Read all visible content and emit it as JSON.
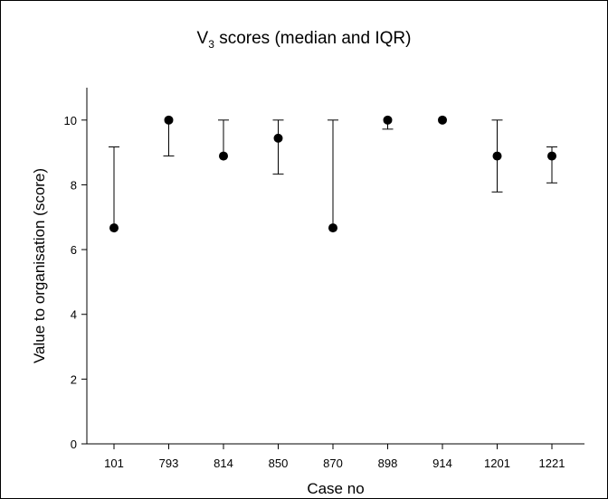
{
  "chart_data": {
    "type": "scatter",
    "title_main": "V",
    "title_sub": "3",
    "title_rest": " scores (median and IQR)",
    "xlabel": "Case no",
    "ylabel": "Value to organisation (score)",
    "ylim": [
      0,
      11
    ],
    "yticks": [
      0,
      2,
      4,
      6,
      8,
      10
    ],
    "categories": [
      "101",
      "793",
      "814",
      "850",
      "870",
      "898",
      "914",
      "1201",
      "1221"
    ],
    "series": [
      {
        "median": [
          6.67,
          10,
          8.89,
          9.44,
          6.67,
          10,
          10,
          8.89,
          8.89
        ],
        "q1": [
          6.67,
          8.89,
          8.89,
          8.33,
          6.67,
          9.72,
          10,
          7.78,
          8.06
        ],
        "q3": [
          9.17,
          10,
          10,
          10,
          10,
          10,
          10,
          10,
          9.17
        ]
      }
    ],
    "grid": false,
    "marker_color": "#000000"
  }
}
